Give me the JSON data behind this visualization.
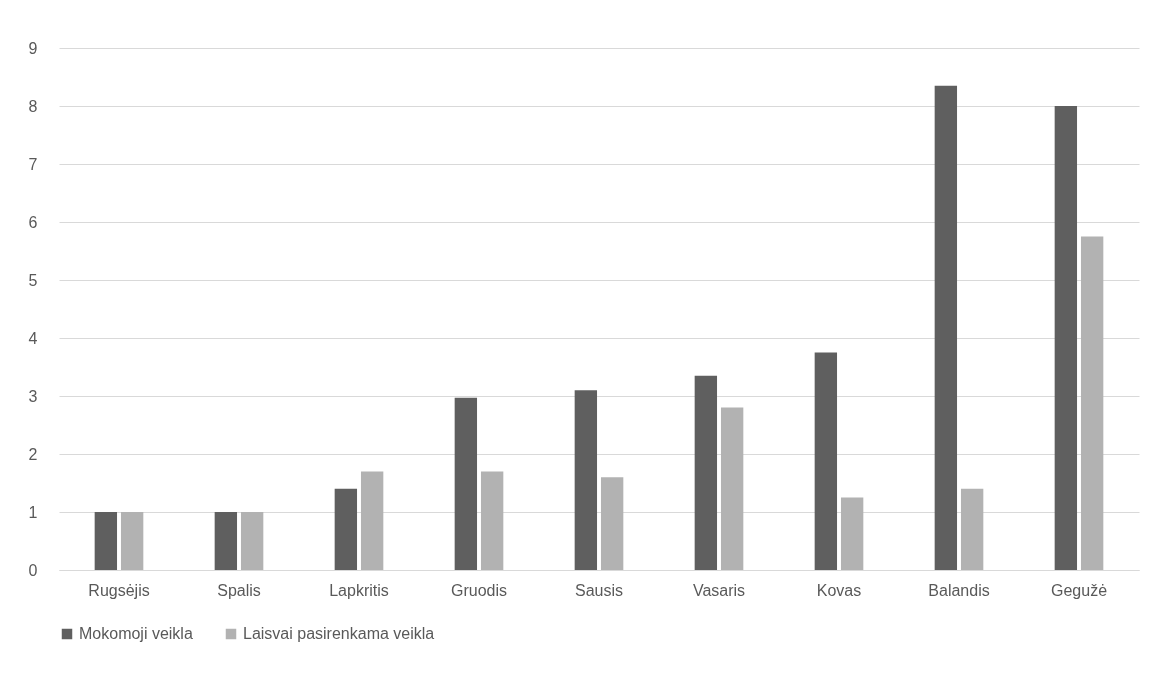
{
  "chart_data": {
    "type": "bar",
    "categories": [
      "Rugsėjis",
      "Spalis",
      "Lapkritis",
      "Gruodis",
      "Sausis",
      "Vasaris",
      "Kovas",
      "Balandis",
      "Gegužė"
    ],
    "series": [
      {
        "name": "Mokomoji veikla",
        "color": "#5f5f5f",
        "values": [
          1,
          1,
          1.4,
          2.97,
          3.1,
          3.35,
          3.75,
          8.35,
          8
        ]
      },
      {
        "name": "Laisvai pasirenkama veikla",
        "color": "#b2b2b2",
        "values": [
          1,
          1,
          1.7,
          1.7,
          1.6,
          2.8,
          1.25,
          1.4,
          5.75
        ]
      }
    ],
    "ylim": [
      0,
      9
    ],
    "yticks": [
      0,
      1,
      2,
      3,
      4,
      5,
      6,
      7,
      8,
      9
    ],
    "grid": "y",
    "legend": "bottom"
  }
}
